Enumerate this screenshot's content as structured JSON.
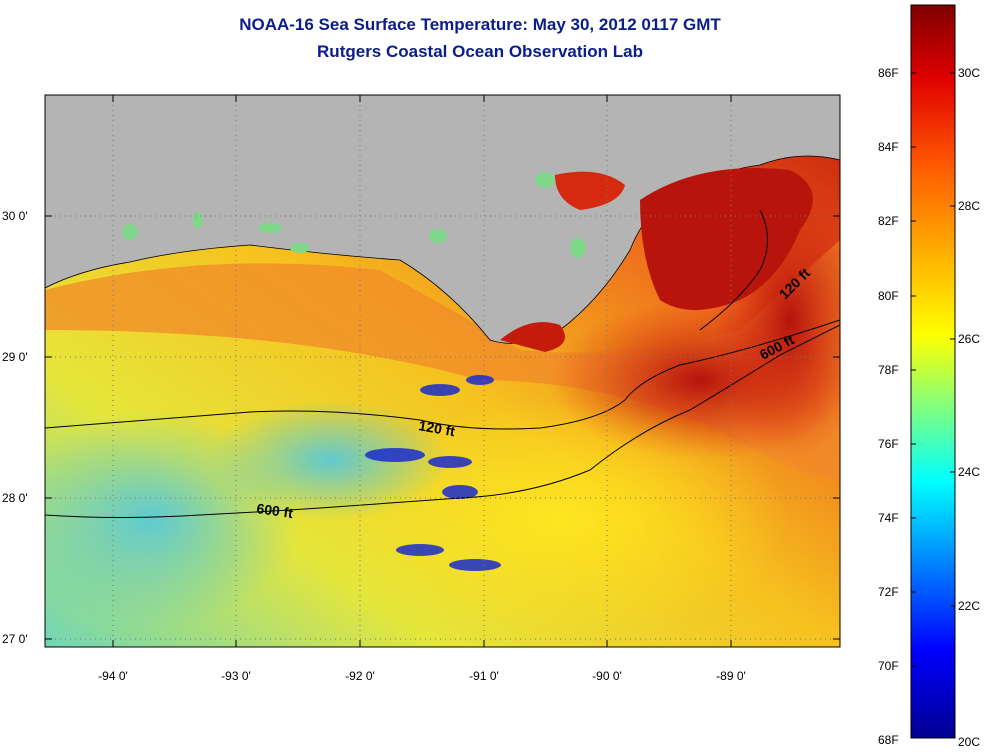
{
  "title": {
    "line1": "NOAA-16 Sea Surface Temperature:  May 30, 2012 0117 GMT",
    "line2": "Rutgers Coastal Ocean Observation Lab"
  },
  "map": {
    "lon_labels": [
      "-94 0'",
      "-93 0'",
      "-92 0'",
      "-91 0'",
      "-90 0'",
      "-89 0'"
    ],
    "lat_labels": [
      "30 0'",
      "29 0'",
      "28 0'",
      "27 0'"
    ],
    "contour_labels": [
      {
        "text": "120 ft"
      },
      {
        "text": "600 ft"
      },
      {
        "text": "120 ft"
      },
      {
        "text": "600 ft"
      }
    ],
    "colors": {
      "land": "#b4b4b4",
      "warm": "#e8431a",
      "hot": "#b20d0b",
      "mid": "#f7c322",
      "cool": "#7fd8a4",
      "cold": "#1c2fcf",
      "grid": "#777777"
    }
  },
  "colorbar": {
    "fahrenheit_labels": [
      "86F",
      "84F",
      "82F",
      "80F",
      "78F",
      "76F",
      "74F",
      "72F",
      "70F",
      "68F"
    ],
    "celsius_labels": [
      "30C",
      "28C",
      "26C",
      "24C",
      "22C",
      "20C"
    ]
  }
}
